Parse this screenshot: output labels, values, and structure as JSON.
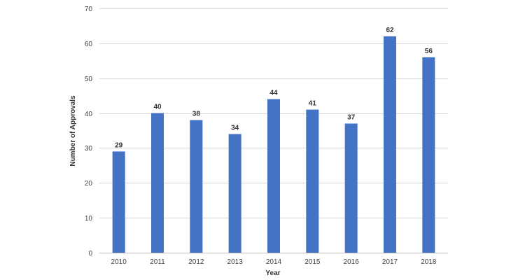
{
  "chart_data": {
    "type": "bar",
    "categories": [
      "2010",
      "2011",
      "2012",
      "2013",
      "2014",
      "2015",
      "2016",
      "2017",
      "2018"
    ],
    "values": [
      29,
      40,
      38,
      34,
      44,
      41,
      37,
      62,
      56
    ],
    "xlabel": "Year",
    "ylabel": "Number of Approvals",
    "ylim": [
      0,
      70
    ],
    "yticks": [
      0,
      10,
      20,
      30,
      40,
      50,
      60,
      70
    ],
    "grid": true,
    "bar_color": "#4472c4",
    "data_labels": true
  }
}
